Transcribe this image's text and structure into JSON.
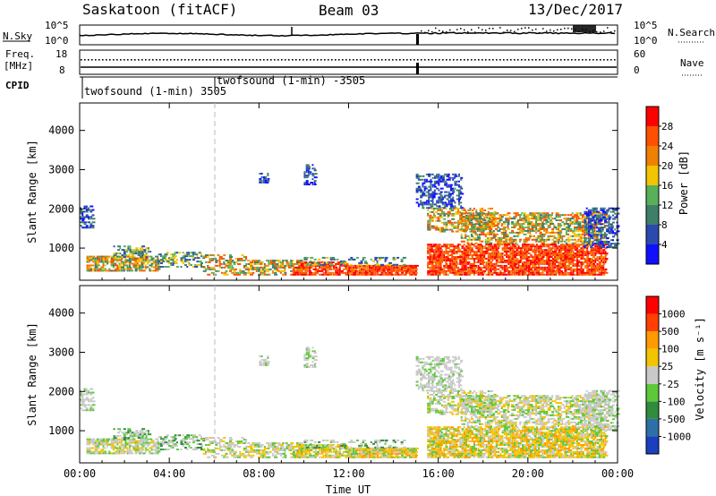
{
  "header": {
    "site": "Saskatoon (fitACF)",
    "beam": "Beam 03",
    "date": "13/Dec/2017"
  },
  "panels": {
    "nsky": {
      "left_label": "N.Sky",
      "left_ticks": [
        "10^5",
        "10^0"
      ],
      "right_ticks": [
        "10^5",
        "10^0"
      ],
      "right_label": "N.Search"
    },
    "freq": {
      "left_label_1": "Freq.",
      "left_label_2": "[MHz]",
      "left_ticks": [
        "18",
        "8"
      ],
      "right_ticks": [
        "60",
        "0"
      ],
      "right_label": "Nave"
    },
    "cpid": {
      "label": "CPID",
      "program_1": "twofsound (1-min) 3505",
      "program_2": "twofsound (1-min) -3505"
    }
  },
  "chart_data": [
    {
      "type": "heatmap",
      "name": "power",
      "xlabel": "",
      "ylabel": "Slant Range [km]",
      "x_ticks": [
        "00:00",
        "04:00",
        "08:00",
        "12:00",
        "16:00",
        "20:00",
        "00:00"
      ],
      "y_ticks": [
        1000,
        2000,
        3000,
        4000
      ],
      "xlim_hours": [
        0,
        24
      ],
      "ylim_km": [
        180,
        4700
      ],
      "colorbar": {
        "label": "Power [dB]",
        "ticks": [
          "4",
          "8",
          "12",
          "16",
          "20",
          "24",
          "28"
        ],
        "colors": [
          "#1010ff",
          "#2a4ab0",
          "#3f7f6a",
          "#58b058",
          "#f2c400",
          "#f08000",
          "#ff5000",
          "#ff0000"
        ]
      }
    },
    {
      "type": "heatmap",
      "name": "velocity",
      "xlabel": "Time UT",
      "ylabel": "Slant Range [km]",
      "x_ticks": [
        "00:00",
        "04:00",
        "08:00",
        "12:00",
        "16:00",
        "20:00",
        "00:00"
      ],
      "y_ticks": [
        1000,
        2000,
        3000,
        4000
      ],
      "xlim_hours": [
        0,
        24
      ],
      "ylim_km": [
        180,
        4700
      ],
      "colorbar": {
        "label": "Velocity [m s⁻¹]",
        "ticks": [
          "1000",
          "500",
          "100",
          "25",
          "-25",
          "-100",
          "-500",
          "-1000"
        ],
        "colors": [
          "#1a3fbf",
          "#2f6fa8",
          "#2f8c3c",
          "#5dc83a",
          "#c8c8c8",
          "#f2c400",
          "#ff9a00",
          "#ff4000",
          "#ff0000"
        ]
      }
    }
  ],
  "scatter_regions": [
    {
      "t0": 0.0,
      "t1": 0.6,
      "r0": 1500,
      "r1": 2050,
      "color_set": "blue",
      "density": 0.6
    },
    {
      "t0": 0.3,
      "t1": 3.5,
      "r0": 400,
      "r1": 800,
      "color_set": "mid",
      "density": 0.75
    },
    {
      "t0": 1.5,
      "t1": 3.2,
      "r0": 750,
      "r1": 1050,
      "color_set": "low",
      "density": 0.5
    },
    {
      "t0": 3.5,
      "t1": 5.5,
      "r0": 500,
      "r1": 900,
      "color_set": "low",
      "density": 0.45
    },
    {
      "t0": 5.5,
      "t1": 7.5,
      "r0": 300,
      "r1": 800,
      "color_set": "mid",
      "density": 0.45
    },
    {
      "t0": 7.5,
      "t1": 10.0,
      "r0": 300,
      "r1": 700,
      "color_set": "mid",
      "density": 0.55
    },
    {
      "t0": 9.5,
      "t1": 12.0,
      "r0": 300,
      "r1": 650,
      "color_set": "high",
      "density": 0.75
    },
    {
      "t0": 12.0,
      "t1": 15.0,
      "r0": 300,
      "r1": 550,
      "color_set": "high",
      "density": 0.95
    },
    {
      "t0": 10.0,
      "t1": 14.5,
      "r0": 550,
      "r1": 750,
      "color_set": "low",
      "density": 0.3
    },
    {
      "t0": 8.0,
      "t1": 8.4,
      "r0": 2650,
      "r1": 2900,
      "color_set": "blue",
      "density": 0.5
    },
    {
      "t0": 10.0,
      "t1": 10.5,
      "r0": 2600,
      "r1": 3100,
      "color_set": "blue",
      "density": 0.5
    },
    {
      "t0": 15.0,
      "t1": 17.0,
      "r0": 2000,
      "r1": 2900,
      "color_set": "blue",
      "density": 0.45
    },
    {
      "t0": 15.5,
      "t1": 18.5,
      "r0": 1400,
      "r1": 2000,
      "color_set": "mid",
      "density": 0.5
    },
    {
      "t0": 17.0,
      "t1": 23.5,
      "r0": 1100,
      "r1": 1900,
      "color_set": "mid",
      "density": 0.55
    },
    {
      "t0": 15.5,
      "t1": 23.5,
      "r0": 300,
      "r1": 1100,
      "color_set": "high",
      "density": 0.8
    },
    {
      "t0": 22.5,
      "t1": 24.0,
      "r0": 1000,
      "r1": 2000,
      "color_set": "blue",
      "density": 0.5
    }
  ]
}
